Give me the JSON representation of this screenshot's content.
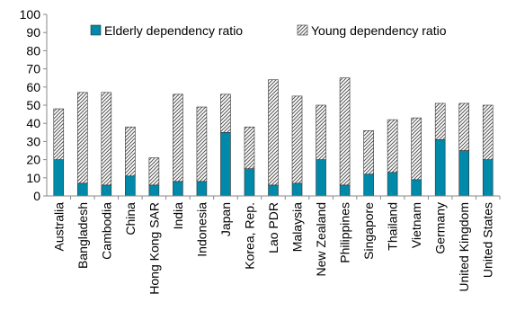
{
  "chart_data": {
    "type": "bar",
    "stacked": true,
    "categories": [
      "Australia",
      "Bangladesh",
      "Cambodia",
      "China",
      "Hong Kong SAR",
      "India",
      "Indonesia",
      "Japan",
      "Korea, Rep.",
      "Lao PDR",
      "Malaysia",
      "New Zealand",
      "Philippines",
      "Singapore",
      "Thailand",
      "Vietnam",
      "Germany",
      "United Kingdom",
      "United States"
    ],
    "series": [
      {
        "name": "Elderly dependency ratio",
        "color": "#0089a8",
        "pattern": "solid",
        "values": [
          20,
          7,
          6,
          11,
          6,
          8,
          8,
          35,
          15,
          6,
          7,
          20,
          6,
          12,
          13,
          9,
          31,
          25,
          20
        ]
      },
      {
        "name": "Young dependency ratio",
        "color": "#000000",
        "pattern": "hatched",
        "values": [
          28,
          50,
          51,
          27,
          15,
          48,
          41,
          21,
          23,
          58,
          48,
          30,
          59,
          24,
          29,
          34,
          20,
          26,
          30
        ]
      }
    ],
    "ylim": [
      0,
      100
    ],
    "yticks": [
      "0",
      "10",
      "20",
      "30",
      "40",
      "50",
      "60",
      "70",
      "80",
      "90",
      "100"
    ],
    "legend_position": "top",
    "grid": false,
    "title": "",
    "xlabel": "",
    "ylabel": ""
  }
}
